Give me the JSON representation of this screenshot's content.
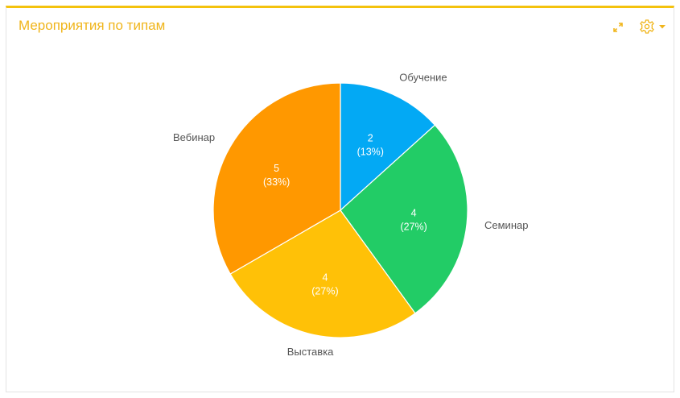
{
  "widget": {
    "title": "Мероприятия по типам",
    "accent_color": "#f4c20d",
    "title_color": "#f0b51b",
    "expand_icon": "expand-arrows-icon",
    "settings_icon": "gear-icon",
    "dropdown_icon": "caret-down-icon"
  },
  "chart_data": {
    "type": "pie",
    "title": "Мероприятия по типам",
    "start": "top",
    "direction": "clockwise",
    "slices": [
      {
        "label": "Обучение",
        "value": 2,
        "percent_label": "(13%)",
        "color": "#03a9f4"
      },
      {
        "label": "Семинар",
        "value": 4,
        "percent_label": "(27%)",
        "color": "#22cc66"
      },
      {
        "label": "Выставка",
        "value": 4,
        "percent_label": "(27%)",
        "color": "#ffc107"
      },
      {
        "label": "Вебинар",
        "value": 5,
        "percent_label": "(33%)",
        "color": "#ff9800"
      }
    ]
  }
}
